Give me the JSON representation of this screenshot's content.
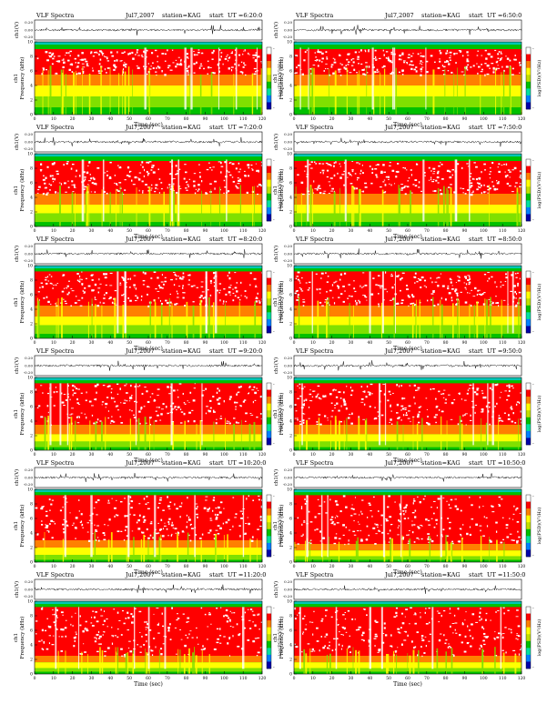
{
  "panel_labels": {
    "header_title": "VLF Spectra",
    "header_date": "Jul7,2007",
    "header_station": "station=KAG",
    "header_start": "start",
    "waveform_ylabel": "ch1(V)",
    "spec_ylabel_channel": "ch1",
    "spec_ylabel_quantity": "Frequency (kHz)",
    "colorbar_label": "log(PSD)(V²/Hz)",
    "xlabel": "Time (sec)"
  },
  "chart_data": [
    {
      "type": "heatmap",
      "start_ut": "UT =6:20:0",
      "x_ticks": [
        0,
        10,
        20,
        30,
        40,
        50,
        60,
        70,
        80,
        90,
        100,
        110,
        120
      ],
      "xlim": [
        0,
        120
      ],
      "y_ticks": [
        0,
        2,
        4,
        6,
        8,
        10
      ],
      "ylim": [
        0,
        10
      ],
      "waveform_ticks": [
        "0.20",
        "0.00",
        "-0.20"
      ],
      "waveform_ylim": [
        -0.2,
        0.2
      ],
      "colorbar_ticks": [
        "-",
        "-"
      ],
      "colors": [
        "#0000aa",
        "#0080ff",
        "#00e0a0",
        "#00c000",
        "#c0e000",
        "#ffff00",
        "#ff8000",
        "#ff0000",
        "#ffffff"
      ],
      "bands": [
        {
          "from": 9.6,
          "to": 10.0,
          "color": "#00c8b4"
        },
        {
          "from": 9.0,
          "to": 9.6,
          "color": "#00c000"
        },
        {
          "from": 5.5,
          "to": 9.0,
          "color": "#ff0000"
        },
        {
          "from": 4.0,
          "to": 5.5,
          "color": "#ff8000"
        },
        {
          "from": 2.5,
          "to": 4.0,
          "color": "#ffff00"
        },
        {
          "from": 1.0,
          "to": 2.5,
          "color": "#80e000"
        },
        {
          "from": 0.0,
          "to": 1.0,
          "color": "#00c000"
        }
      ]
    },
    {
      "type": "heatmap",
      "start_ut": "UT =6:50:0",
      "x_ticks": [
        0,
        10,
        20,
        30,
        40,
        50,
        60,
        70,
        80,
        90,
        100,
        110,
        120
      ],
      "xlim": [
        0,
        120
      ],
      "y_ticks": [
        0,
        2,
        4,
        6,
        8,
        10
      ],
      "ylim": [
        0,
        10
      ],
      "waveform_ticks": [
        "0.20",
        "0.00",
        "-0.20"
      ],
      "waveform_ylim": [
        -0.2,
        0.2
      ],
      "colorbar_ticks": [
        "-",
        "-"
      ],
      "colors": [
        "#0000aa",
        "#0080ff",
        "#00e0a0",
        "#00c000",
        "#c0e000",
        "#ffff00",
        "#ff8000",
        "#ff0000",
        "#ffffff"
      ],
      "bands": [
        {
          "from": 9.6,
          "to": 10.0,
          "color": "#00c8b4"
        },
        {
          "from": 9.0,
          "to": 9.6,
          "color": "#00c000"
        },
        {
          "from": 5.5,
          "to": 9.0,
          "color": "#ff0000"
        },
        {
          "from": 4.0,
          "to": 5.5,
          "color": "#ff8000"
        },
        {
          "from": 2.5,
          "to": 4.0,
          "color": "#ffff00"
        },
        {
          "from": 1.0,
          "to": 2.5,
          "color": "#80e000"
        },
        {
          "from": 0.0,
          "to": 1.0,
          "color": "#00c000"
        }
      ]
    },
    {
      "type": "heatmap",
      "start_ut": "UT =7:20:0",
      "x_ticks": [
        0,
        10,
        20,
        30,
        40,
        50,
        60,
        70,
        80,
        90,
        100,
        110,
        120
      ],
      "xlim": [
        0,
        120
      ],
      "y_ticks": [
        0,
        2,
        4,
        6,
        8,
        10
      ],
      "ylim": [
        0,
        10
      ],
      "waveform_ticks": [
        "0.20",
        "0.00",
        "-0.20"
      ],
      "waveform_ylim": [
        -0.2,
        0.2
      ],
      "colorbar_ticks": [
        "-",
        "-"
      ],
      "colors": [
        "#0000aa",
        "#0080ff",
        "#00e0a0",
        "#00c000",
        "#c0e000",
        "#ffff00",
        "#ff8000",
        "#ff0000",
        "#ffffff"
      ],
      "bands": [
        {
          "from": 9.6,
          "to": 10.0,
          "color": "#00c8b4"
        },
        {
          "from": 9.0,
          "to": 9.6,
          "color": "#00c000"
        },
        {
          "from": 4.5,
          "to": 9.0,
          "color": "#ff0000"
        },
        {
          "from": 3.0,
          "to": 4.5,
          "color": "#ff8000"
        },
        {
          "from": 1.8,
          "to": 3.0,
          "color": "#ffff00"
        },
        {
          "from": 0.6,
          "to": 1.8,
          "color": "#80e000"
        },
        {
          "from": 0.0,
          "to": 0.6,
          "color": "#00c000"
        }
      ]
    },
    {
      "type": "heatmap",
      "start_ut": "UT =7:50:0",
      "x_ticks": [
        0,
        10,
        20,
        30,
        40,
        50,
        60,
        70,
        80,
        90,
        100,
        110,
        120
      ],
      "xlim": [
        0,
        120
      ],
      "y_ticks": [
        0,
        2,
        4,
        6,
        8,
        10
      ],
      "ylim": [
        0,
        10
      ],
      "waveform_ticks": [
        "0.20",
        "0.00",
        "-0.20"
      ],
      "waveform_ylim": [
        -0.2,
        0.2
      ],
      "colorbar_ticks": [
        "-",
        "-"
      ],
      "colors": [
        "#0000aa",
        "#0080ff",
        "#00e0a0",
        "#00c000",
        "#c0e000",
        "#ffff00",
        "#ff8000",
        "#ff0000",
        "#ffffff"
      ],
      "bands": [
        {
          "from": 9.6,
          "to": 10.0,
          "color": "#00c8b4"
        },
        {
          "from": 9.0,
          "to": 9.6,
          "color": "#00c000"
        },
        {
          "from": 4.5,
          "to": 9.0,
          "color": "#ff0000"
        },
        {
          "from": 3.0,
          "to": 4.5,
          "color": "#ff8000"
        },
        {
          "from": 1.8,
          "to": 3.0,
          "color": "#ffff00"
        },
        {
          "from": 0.6,
          "to": 1.8,
          "color": "#80e000"
        },
        {
          "from": 0.0,
          "to": 0.6,
          "color": "#00c000"
        }
      ]
    },
    {
      "type": "heatmap",
      "start_ut": "UT =8:20:0",
      "x_ticks": [
        0,
        10,
        20,
        30,
        40,
        50,
        60,
        70,
        80,
        90,
        100,
        110,
        120
      ],
      "xlim": [
        0,
        120
      ],
      "y_ticks": [
        0,
        2,
        4,
        6,
        8,
        10
      ],
      "ylim": [
        0,
        10
      ],
      "waveform_ticks": [
        "0.20",
        "0.00",
        "-0.20"
      ],
      "waveform_ylim": [
        -0.2,
        0.2
      ],
      "colorbar_ticks": [
        "-",
        "-"
      ],
      "colors": [
        "#0000aa",
        "#0080ff",
        "#00e0a0",
        "#00c000",
        "#c0e000",
        "#ffff00",
        "#ff8000",
        "#ff0000",
        "#ffffff"
      ],
      "bands": [
        {
          "from": 9.6,
          "to": 10.0,
          "color": "#00c8b4"
        },
        {
          "from": 9.2,
          "to": 9.6,
          "color": "#00c000"
        },
        {
          "from": 4.5,
          "to": 9.2,
          "color": "#ff0000"
        },
        {
          "from": 3.0,
          "to": 4.5,
          "color": "#ff8000"
        },
        {
          "from": 1.8,
          "to": 3.0,
          "color": "#ffff00"
        },
        {
          "from": 0.6,
          "to": 1.8,
          "color": "#80e000"
        },
        {
          "from": 0.0,
          "to": 0.6,
          "color": "#00c000"
        }
      ]
    },
    {
      "type": "heatmap",
      "start_ut": "UT =8:50:0",
      "x_ticks": [
        0,
        10,
        20,
        30,
        40,
        50,
        60,
        70,
        80,
        90,
        100,
        110,
        120
      ],
      "xlim": [
        0,
        120
      ],
      "y_ticks": [
        0,
        2,
        4,
        6,
        8,
        10
      ],
      "ylim": [
        0,
        10
      ],
      "waveform_ticks": [
        "0.20",
        "0.00",
        "-0.20"
      ],
      "waveform_ylim": [
        -0.2,
        0.2
      ],
      "colorbar_ticks": [
        "-",
        "-"
      ],
      "colors": [
        "#0000aa",
        "#0080ff",
        "#00e0a0",
        "#00c000",
        "#c0e000",
        "#ffff00",
        "#ff8000",
        "#ff0000",
        "#ffffff"
      ],
      "bands": [
        {
          "from": 9.6,
          "to": 10.0,
          "color": "#00c8b4"
        },
        {
          "from": 9.2,
          "to": 9.6,
          "color": "#00c000"
        },
        {
          "from": 4.5,
          "to": 9.2,
          "color": "#ff0000"
        },
        {
          "from": 3.0,
          "to": 4.5,
          "color": "#ff8000"
        },
        {
          "from": 1.8,
          "to": 3.0,
          "color": "#ffff00"
        },
        {
          "from": 0.6,
          "to": 1.8,
          "color": "#80e000"
        },
        {
          "from": 0.0,
          "to": 0.6,
          "color": "#00c000"
        }
      ]
    },
    {
      "type": "heatmap",
      "start_ut": "UT =9:20:0",
      "x_ticks": [
        0,
        10,
        20,
        30,
        40,
        50,
        60,
        70,
        80,
        90,
        100,
        110,
        120
      ],
      "xlim": [
        0,
        120
      ],
      "y_ticks": [
        0,
        2,
        4,
        6,
        8,
        10
      ],
      "ylim": [
        0,
        10
      ],
      "waveform_ticks": [
        "0.20",
        "0.00",
        "-0.20"
      ],
      "waveform_ylim": [
        -0.2,
        0.2
      ],
      "colorbar_ticks": [
        "-",
        "-"
      ],
      "colors": [
        "#0000aa",
        "#0080ff",
        "#00e0a0",
        "#00c000",
        "#c0e000",
        "#ffff00",
        "#ff8000",
        "#ff0000",
        "#ffffff"
      ],
      "bands": [
        {
          "from": 9.6,
          "to": 10.0,
          "color": "#00c8b4"
        },
        {
          "from": 9.2,
          "to": 9.6,
          "color": "#00c000"
        },
        {
          "from": 3.5,
          "to": 9.2,
          "color": "#ff0000"
        },
        {
          "from": 2.2,
          "to": 3.5,
          "color": "#ff8000"
        },
        {
          "from": 1.2,
          "to": 2.2,
          "color": "#ffff00"
        },
        {
          "from": 0.4,
          "to": 1.2,
          "color": "#80e000"
        },
        {
          "from": 0.0,
          "to": 0.4,
          "color": "#00c000"
        }
      ]
    },
    {
      "type": "heatmap",
      "start_ut": "UT =9:50:0",
      "x_ticks": [
        0,
        10,
        20,
        30,
        40,
        50,
        60,
        70,
        80,
        90,
        100,
        110,
        120
      ],
      "xlim": [
        0,
        120
      ],
      "y_ticks": [
        0,
        2,
        4,
        6,
        8,
        10
      ],
      "ylim": [
        0,
        10
      ],
      "waveform_ticks": [
        "0.20",
        "0.00",
        "-0.20"
      ],
      "waveform_ylim": [
        -0.2,
        0.2
      ],
      "colorbar_ticks": [
        "-",
        "-"
      ],
      "colors": [
        "#0000aa",
        "#0080ff",
        "#00e0a0",
        "#00c000",
        "#c0e000",
        "#ffff00",
        "#ff8000",
        "#ff0000",
        "#ffffff"
      ],
      "bands": [
        {
          "from": 9.6,
          "to": 10.0,
          "color": "#00c8b4"
        },
        {
          "from": 9.2,
          "to": 9.6,
          "color": "#00c000"
        },
        {
          "from": 3.5,
          "to": 9.2,
          "color": "#ff0000"
        },
        {
          "from": 2.2,
          "to": 3.5,
          "color": "#ff8000"
        },
        {
          "from": 1.2,
          "to": 2.2,
          "color": "#ffff00"
        },
        {
          "from": 0.4,
          "to": 1.2,
          "color": "#80e000"
        },
        {
          "from": 0.0,
          "to": 0.4,
          "color": "#00c000"
        }
      ]
    },
    {
      "type": "heatmap",
      "start_ut": "UT =10:20:0",
      "x_ticks": [
        0,
        10,
        20,
        30,
        40,
        50,
        60,
        70,
        80,
        90,
        100,
        110,
        120
      ],
      "xlim": [
        0,
        120
      ],
      "y_ticks": [
        0,
        2,
        4,
        6,
        8,
        10
      ],
      "ylim": [
        0,
        10
      ],
      "waveform_ticks": [
        "0.20",
        "0.00",
        "-0.20"
      ],
      "waveform_ylim": [
        -0.2,
        0.2
      ],
      "colorbar_ticks": [
        "-",
        "-"
      ],
      "colors": [
        "#0000aa",
        "#0080ff",
        "#00e0a0",
        "#00c000",
        "#c0e000",
        "#ffff00",
        "#ff8000",
        "#ff0000",
        "#ffffff"
      ],
      "bands": [
        {
          "from": 9.6,
          "to": 10.0,
          "color": "#00c8b4"
        },
        {
          "from": 9.2,
          "to": 9.6,
          "color": "#00c000"
        },
        {
          "from": 3.0,
          "to": 9.2,
          "color": "#ff0000"
        },
        {
          "from": 2.0,
          "to": 3.0,
          "color": "#ff8000"
        },
        {
          "from": 1.0,
          "to": 2.0,
          "color": "#ffff00"
        },
        {
          "from": 0.3,
          "to": 1.0,
          "color": "#80e000"
        },
        {
          "from": 0.0,
          "to": 0.3,
          "color": "#00c000"
        }
      ]
    },
    {
      "type": "heatmap",
      "start_ut": "UT =10:50:0",
      "x_ticks": [
        0,
        10,
        20,
        30,
        40,
        50,
        60,
        70,
        80,
        90,
        100,
        110,
        120
      ],
      "xlim": [
        0,
        120
      ],
      "y_ticks": [
        0,
        2,
        4,
        6,
        8,
        10
      ],
      "ylim": [
        0,
        10
      ],
      "waveform_ticks": [
        "0.20",
        "0.00",
        "-0.20"
      ],
      "waveform_ylim": [
        -0.2,
        0.2
      ],
      "colorbar_ticks": [
        "-",
        "-"
      ],
      "colors": [
        "#0000aa",
        "#0080ff",
        "#00e0a0",
        "#00c000",
        "#c0e000",
        "#ffff00",
        "#ff8000",
        "#ff0000",
        "#ffffff"
      ],
      "bands": [
        {
          "from": 9.6,
          "to": 10.0,
          "color": "#00c8b4"
        },
        {
          "from": 9.2,
          "to": 9.6,
          "color": "#00c000"
        },
        {
          "from": 2.5,
          "to": 9.2,
          "color": "#ff0000"
        },
        {
          "from": 1.6,
          "to": 2.5,
          "color": "#ff8000"
        },
        {
          "from": 0.8,
          "to": 1.6,
          "color": "#ffff00"
        },
        {
          "from": 0.3,
          "to": 0.8,
          "color": "#80e000"
        },
        {
          "from": 0.0,
          "to": 0.3,
          "color": "#00c000"
        }
      ]
    },
    {
      "type": "heatmap",
      "start_ut": "UT =11:20:0",
      "x_ticks": [
        0,
        10,
        20,
        30,
        40,
        50,
        60,
        70,
        80,
        90,
        100,
        110,
        120
      ],
      "xlim": [
        0,
        120
      ],
      "y_ticks": [
        0,
        2,
        4,
        6,
        8,
        10
      ],
      "ylim": [
        0,
        10
      ],
      "waveform_ticks": [
        "0.20",
        "0.00",
        "-0.20"
      ],
      "waveform_ylim": [
        -0.2,
        0.2
      ],
      "colorbar_ticks": [
        "-",
        "-"
      ],
      "colors": [
        "#0000aa",
        "#0080ff",
        "#00e0a0",
        "#00c000",
        "#c0e000",
        "#ffff00",
        "#ff8000",
        "#ff0000",
        "#ffffff"
      ],
      "bands": [
        {
          "from": 9.6,
          "to": 10.0,
          "color": "#00c8b4"
        },
        {
          "from": 9.2,
          "to": 9.6,
          "color": "#00c000"
        },
        {
          "from": 2.5,
          "to": 9.2,
          "color": "#ff0000"
        },
        {
          "from": 1.6,
          "to": 2.5,
          "color": "#ff8000"
        },
        {
          "from": 0.8,
          "to": 1.6,
          "color": "#ffff00"
        },
        {
          "from": 0.3,
          "to": 0.8,
          "color": "#80e000"
        },
        {
          "from": 0.0,
          "to": 0.3,
          "color": "#00c000"
        }
      ]
    },
    {
      "type": "heatmap",
      "start_ut": "UT =11:50:0",
      "x_ticks": [
        0,
        10,
        20,
        30,
        40,
        50,
        60,
        70,
        80,
        90,
        100,
        110,
        120
      ],
      "xlim": [
        0,
        120
      ],
      "y_ticks": [
        0,
        2,
        4,
        6,
        8,
        10
      ],
      "ylim": [
        0,
        10
      ],
      "waveform_ticks": [
        "0.20",
        "0.00",
        "-0.20"
      ],
      "waveform_ylim": [
        -0.2,
        0.2
      ],
      "colorbar_ticks": [
        "-",
        "-"
      ],
      "colors": [
        "#0000aa",
        "#0080ff",
        "#00e0a0",
        "#00c000",
        "#c0e000",
        "#ffff00",
        "#ff8000",
        "#ff0000",
        "#ffffff"
      ],
      "bands": [
        {
          "from": 9.6,
          "to": 10.0,
          "color": "#00c8b4"
        },
        {
          "from": 9.2,
          "to": 9.6,
          "color": "#00c000"
        },
        {
          "from": 2.5,
          "to": 9.2,
          "color": "#ff0000"
        },
        {
          "from": 1.6,
          "to": 2.5,
          "color": "#ff8000"
        },
        {
          "from": 0.8,
          "to": 1.6,
          "color": "#ffff00"
        },
        {
          "from": 0.3,
          "to": 0.8,
          "color": "#80e000"
        },
        {
          "from": 0.0,
          "to": 0.3,
          "color": "#00c000"
        }
      ]
    }
  ]
}
